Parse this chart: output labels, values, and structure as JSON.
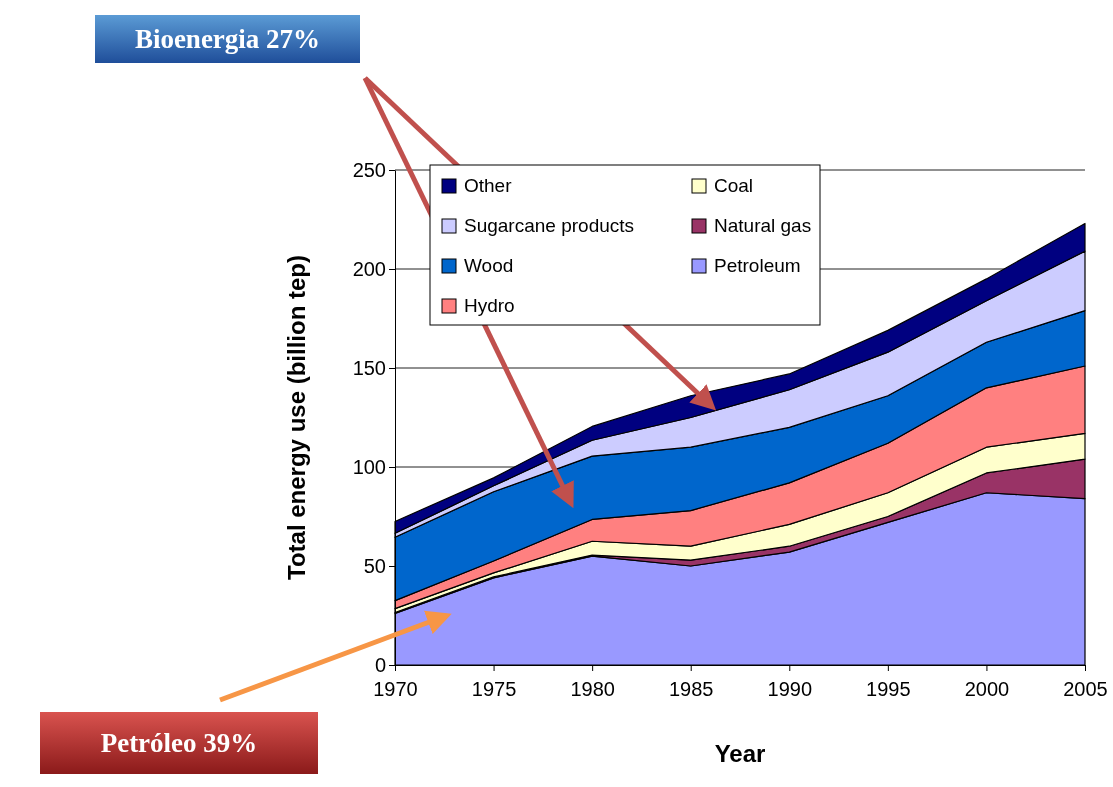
{
  "chart_data": {
    "type": "area",
    "stacked": true,
    "x": [
      1970,
      1975,
      1980,
      1985,
      1990,
      1995,
      2000,
      2005
    ],
    "xlim": [
      1970,
      2005
    ],
    "xticks": [
      1970,
      1975,
      1980,
      1985,
      1990,
      1995,
      2000,
      2005
    ],
    "ylim": [
      0,
      250
    ],
    "yticks": [
      0,
      50,
      100,
      150,
      200,
      250
    ],
    "xlabel": "Year",
    "ylabel": "Total energy use (billion tep)",
    "grid": "y",
    "legend": "top left",
    "series": [
      {
        "name": "Petroleum",
        "color": "#9999ff",
        "values": [
          26,
          44,
          55,
          50,
          57,
          72,
          87,
          84
        ]
      },
      {
        "name": "Natural gas",
        "color": "#993366",
        "values": [
          0.5,
          0.5,
          0.5,
          3,
          3,
          3,
          10,
          20
        ]
      },
      {
        "name": "Coal",
        "color": "#ffffcc",
        "values": [
          2,
          2,
          7,
          7,
          11,
          12,
          13,
          13
        ]
      },
      {
        "name": "Hydro",
        "color": "#ff8080",
        "values": [
          4,
          6,
          11,
          18,
          21,
          25,
          30,
          34
        ]
      },
      {
        "name": "Wood",
        "color": "#0066cc",
        "values": [
          32,
          35,
          32,
          32,
          28,
          24,
          23,
          28
        ]
      },
      {
        "name": "Sugarcane products",
        "color": "#ccccff",
        "values": [
          2,
          3,
          8,
          15,
          19,
          22,
          21,
          30
        ]
      },
      {
        "name": "Other",
        "color": "#000080",
        "values": [
          6,
          4,
          7,
          11,
          8,
          11,
          11,
          14
        ]
      }
    ],
    "annotations": [
      "Bioenergia 27%",
      "Petróleo 39%"
    ]
  }
}
